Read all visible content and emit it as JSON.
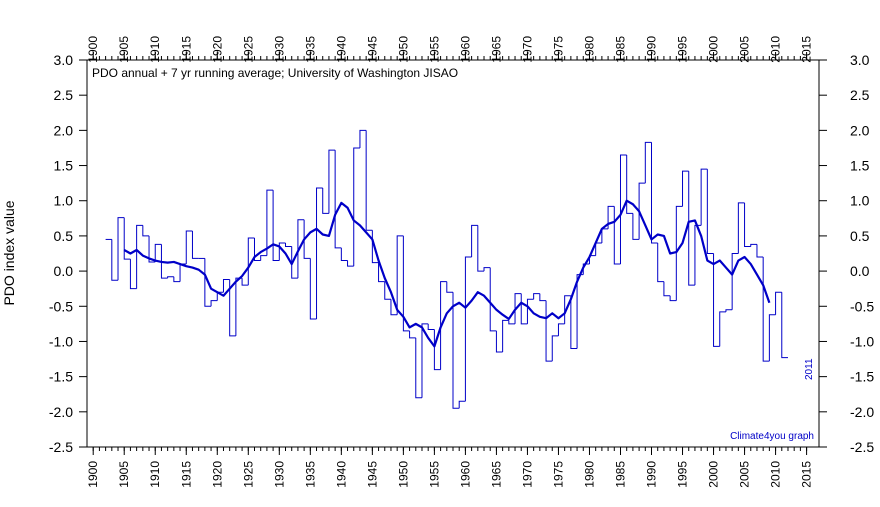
{
  "chart_data": {
    "type": "step",
    "title": "PDO annual + 7 yr running average; University of Washington JISAO",
    "y_label": "PDO index value",
    "credit": "Climate4you graph",
    "end_label": "2011",
    "xlim": [
      1899,
      2017
    ],
    "ylim": [
      -2.5,
      3.0
    ],
    "xticks": [
      1900,
      1905,
      1910,
      1915,
      1920,
      1925,
      1930,
      1935,
      1940,
      1945,
      1950,
      1955,
      1960,
      1965,
      1970,
      1975,
      1980,
      1985,
      1990,
      1995,
      2000,
      2005,
      2010,
      2015
    ],
    "yticks": [
      {
        "value": 3,
        "label": "3.0"
      },
      2.5,
      {
        "value": 2,
        "label": "2.0"
      },
      1.5,
      {
        "value": 1,
        "label": "1.0"
      },
      0.5,
      {
        "value": 0,
        "label": "0.0"
      },
      -0.5,
      {
        "value": -1,
        "label": "-1.0"
      },
      -1.5,
      {
        "value": -2,
        "label": "-2.0"
      },
      -2.5
    ],
    "series": [
      {
        "name": "PDO annual",
        "color": "#0000c8",
        "x": [
          1902,
          1903,
          1904,
          1905,
          1906,
          1907,
          1908,
          1909,
          1910,
          1911,
          1912,
          1913,
          1914,
          1915,
          1916,
          1917,
          1918,
          1919,
          1920,
          1921,
          1922,
          1923,
          1924,
          1925,
          1926,
          1927,
          1928,
          1929,
          1930,
          1931,
          1932,
          1933,
          1934,
          1935,
          1936,
          1937,
          1938,
          1939,
          1940,
          1941,
          1942,
          1943,
          1944,
          1945,
          1946,
          1947,
          1948,
          1949,
          1950,
          1951,
          1952,
          1953,
          1954,
          1955,
          1956,
          1957,
          1958,
          1959,
          1960,
          1961,
          1962,
          1963,
          1964,
          1965,
          1966,
          1967,
          1968,
          1969,
          1970,
          1971,
          1972,
          1973,
          1974,
          1975,
          1976,
          1977,
          1978,
          1979,
          1980,
          1981,
          1982,
          1983,
          1984,
          1985,
          1986,
          1987,
          1988,
          1989,
          1990,
          1991,
          1992,
          1993,
          1994,
          1995,
          1996,
          1997,
          1998,
          1999,
          2000,
          2001,
          2002,
          2003,
          2004,
          2005,
          2006,
          2007,
          2008,
          2009,
          2010,
          2011
        ],
        "values": [
          0.45,
          -0.13,
          0.76,
          0.17,
          -0.25,
          0.65,
          0.5,
          0.13,
          0.38,
          -0.1,
          -0.08,
          -0.15,
          0.1,
          0.57,
          0.18,
          0.18,
          -0.5,
          -0.42,
          -0.3,
          -0.12,
          -0.92,
          -0.1,
          -0.2,
          0.47,
          0.15,
          0.22,
          1.15,
          0.15,
          0.4,
          0.35,
          -0.1,
          0.73,
          0.18,
          -0.68,
          1.18,
          0.82,
          1.72,
          0.33,
          0.15,
          0.07,
          1.75,
          2.0,
          0.58,
          0.12,
          -0.15,
          -0.4,
          -0.62,
          0.5,
          -0.85,
          -0.95,
          -1.8,
          -0.75,
          -0.83,
          -1.4,
          -0.15,
          -0.3,
          -1.95,
          -1.85,
          0.2,
          0.65,
          0.0,
          0.05,
          -0.85,
          -1.15,
          -0.7,
          -0.75,
          -0.32,
          -0.75,
          -0.4,
          -0.32,
          -0.42,
          -1.28,
          -0.92,
          -0.75,
          -0.35,
          -1.1,
          -0.05,
          0.1,
          0.22,
          0.4,
          0.6,
          0.92,
          0.1,
          1.65,
          0.82,
          0.45,
          1.25,
          1.83,
          0.4,
          -0.15,
          -0.35,
          -0.42,
          0.92,
          1.42,
          -0.2,
          0.65,
          1.45,
          0.25,
          -1.07,
          -0.58,
          -0.55,
          0.25,
          0.97,
          0.35,
          0.38,
          0.2,
          -1.28,
          -0.62,
          -0.3,
          -1.23
        ]
      },
      {
        "name": "7 yr running average",
        "color": "#0000c8",
        "x": [
          1905,
          1906,
          1907,
          1908,
          1909,
          1910,
          1911,
          1912,
          1913,
          1914,
          1915,
          1916,
          1917,
          1918,
          1919,
          1920,
          1921,
          1922,
          1923,
          1924,
          1925,
          1926,
          1927,
          1928,
          1929,
          1930,
          1931,
          1932,
          1933,
          1934,
          1935,
          1936,
          1937,
          1938,
          1939,
          1940,
          1941,
          1942,
          1943,
          1944,
          1945,
          1946,
          1947,
          1948,
          1949,
          1950,
          1951,
          1952,
          1953,
          1954,
          1955,
          1956,
          1957,
          1958,
          1959,
          1960,
          1961,
          1962,
          1963,
          1964,
          1965,
          1966,
          1967,
          1968,
          1969,
          1970,
          1971,
          1972,
          1973,
          1974,
          1975,
          1976,
          1977,
          1978,
          1979,
          1980,
          1981,
          1982,
          1983,
          1984,
          1985,
          1986,
          1987,
          1988,
          1989,
          1990,
          1991,
          1992,
          1993,
          1994,
          1995,
          1996,
          1997,
          1998,
          1999,
          2000,
          2001,
          2002,
          2003,
          2004,
          2005,
          2006,
          2007,
          2008,
          2009
        ],
        "values": [
          0.3,
          0.25,
          0.3,
          0.22,
          0.18,
          0.15,
          0.13,
          0.12,
          0.13,
          0.1,
          0.07,
          0.05,
          0.02,
          -0.05,
          -0.25,
          -0.3,
          -0.35,
          -0.25,
          -0.15,
          -0.07,
          0.05,
          0.2,
          0.27,
          0.32,
          0.38,
          0.35,
          0.25,
          0.1,
          0.28,
          0.45,
          0.55,
          0.6,
          0.52,
          0.5,
          0.8,
          0.97,
          0.9,
          0.72,
          0.65,
          0.55,
          0.45,
          0.15,
          -0.1,
          -0.3,
          -0.55,
          -0.65,
          -0.8,
          -0.75,
          -0.8,
          -0.95,
          -1.07,
          -0.8,
          -0.6,
          -0.5,
          -0.45,
          -0.52,
          -0.42,
          -0.3,
          -0.35,
          -0.45,
          -0.55,
          -0.62,
          -0.68,
          -0.55,
          -0.45,
          -0.5,
          -0.6,
          -0.65,
          -0.67,
          -0.6,
          -0.67,
          -0.6,
          -0.4,
          -0.15,
          0.05,
          0.2,
          0.4,
          0.6,
          0.67,
          0.7,
          0.8,
          1.0,
          0.95,
          0.85,
          0.65,
          0.45,
          0.52,
          0.5,
          0.25,
          0.27,
          0.4,
          0.7,
          0.72,
          0.5,
          0.15,
          0.1,
          0.15,
          0.05,
          -0.05,
          0.15,
          0.2,
          0.1,
          -0.05,
          -0.2,
          -0.45
        ]
      }
    ]
  }
}
